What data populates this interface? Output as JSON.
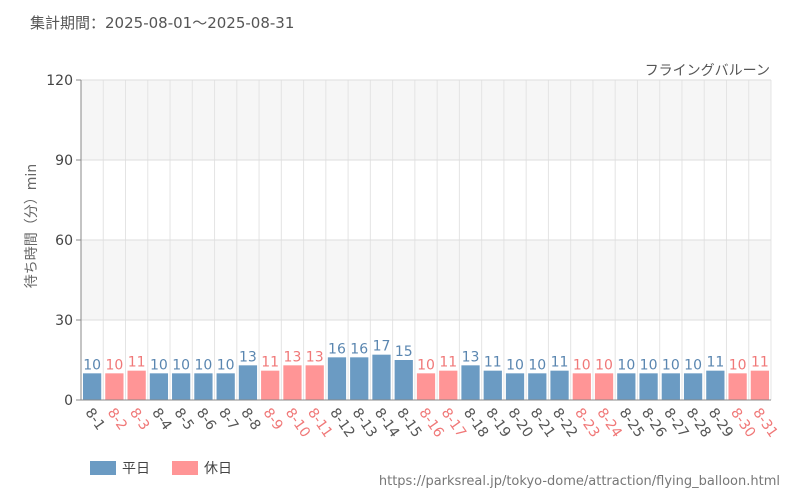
{
  "header": {
    "period_label": "集計期間：",
    "period_value": "2025-08-01～2025-08-31"
  },
  "footer": {
    "source_url": "https://parksreal.jp/tokyo-dome/attraction/flying_balloon.html"
  },
  "legend": {
    "weekday_label": "平日",
    "holiday_label": "休日"
  },
  "colors": {
    "weekday": "#6b9bc3",
    "holiday": "#ff9596",
    "weekday_text": "#5a86b0",
    "holiday_text": "#f07878",
    "tick_text": "#555555"
  },
  "chart_data": {
    "type": "bar",
    "title": "フライングバルーン",
    "ylabel": "待ち時間（分）min",
    "xlabel": "",
    "ylim": [
      0,
      120
    ],
    "yticks": [
      0,
      30,
      60,
      90,
      120
    ],
    "grid": true,
    "categories": [
      "8-1",
      "8-2",
      "8-3",
      "8-4",
      "8-5",
      "8-6",
      "8-7",
      "8-8",
      "8-9",
      "8-10",
      "8-11",
      "8-12",
      "8-13",
      "8-14",
      "8-15",
      "8-16",
      "8-17",
      "8-18",
      "8-19",
      "8-20",
      "8-21",
      "8-22",
      "8-23",
      "8-24",
      "8-25",
      "8-26",
      "8-27",
      "8-28",
      "8-29",
      "8-30",
      "8-31"
    ],
    "values": [
      10,
      10,
      11,
      10,
      10,
      10,
      10,
      13,
      11,
      13,
      13,
      16,
      16,
      17,
      15,
      10,
      11,
      13,
      11,
      10,
      10,
      11,
      10,
      10,
      10,
      10,
      10,
      10,
      11,
      10,
      11
    ],
    "day_type": [
      "weekday",
      "holiday",
      "holiday",
      "weekday",
      "weekday",
      "weekday",
      "weekday",
      "weekday",
      "holiday",
      "holiday",
      "holiday",
      "weekday",
      "weekday",
      "weekday",
      "weekday",
      "holiday",
      "holiday",
      "weekday",
      "weekday",
      "weekday",
      "weekday",
      "weekday",
      "holiday",
      "holiday",
      "weekday",
      "weekday",
      "weekday",
      "weekday",
      "weekday",
      "holiday",
      "holiday"
    ],
    "series": [
      {
        "name": "平日"
      },
      {
        "name": "休日"
      }
    ]
  }
}
